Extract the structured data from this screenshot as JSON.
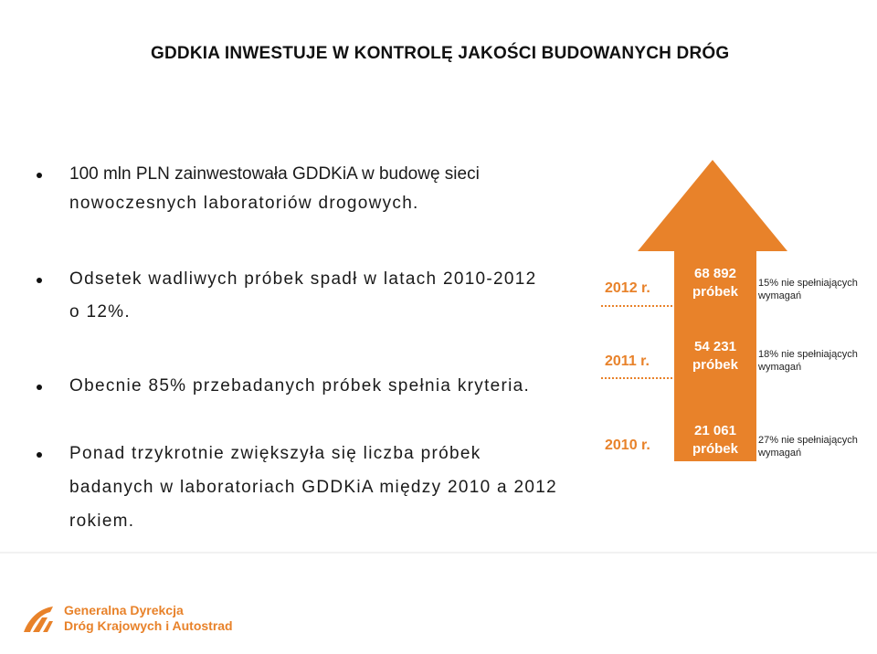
{
  "slide": {
    "title": "GDDKIA INWESTUJE W KONTROLĘ JAKOŚCI BUDOWANYCH DRÓG",
    "bullets": [
      {
        "lines": [
          "100 mln PLN zainwestowała GDDKiA w budowę sieci",
          "nowoczesnych laboratoriów drogowych."
        ]
      },
      {
        "lines": [
          "Odsetek wadliwych próbek spadł w  latach 2010-2012",
          "o 12%."
        ]
      },
      {
        "lines": [
          "Obecnie 85% przebadanych próbek spełnia kryteria."
        ]
      },
      {
        "lines": [
          "Ponad trzykrotnie zwiększyła się liczba próbek",
          "badanych w laboratoriach GDDKiA między 2010 a 2012",
          "rokiem."
        ]
      }
    ]
  },
  "infographic": {
    "accent_color": "#e8822a",
    "rows": [
      {
        "year": "2012 r.",
        "count": "68 892",
        "unit": "próbek",
        "note_lines": [
          "15% nie spełniających",
          "wymagań"
        ]
      },
      {
        "year": "2011 r.",
        "count": "54 231",
        "unit": "próbek",
        "note_lines": [
          "18% nie spełniających",
          "wymagań"
        ]
      },
      {
        "year": "2010 r.",
        "count": "21 061",
        "unit": "próbek",
        "note_lines": [
          "27% nie spełniających",
          "wymagań"
        ]
      }
    ]
  },
  "footer": {
    "org_lines": [
      "Generalna Dyrekcja",
      "Dróg Krajowych i Autostrad"
    ],
    "logo_icon": "gddkia-logo-icon"
  }
}
